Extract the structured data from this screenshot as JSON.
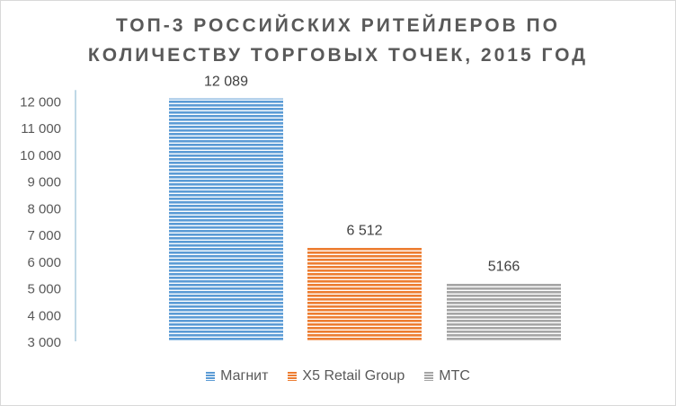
{
  "chart_data": {
    "type": "bar",
    "title_lines": [
      "ТОП-3 РОССИЙСКИХ РИТЕЙЛЕРОВ ПО",
      "КОЛИЧЕСТВУ ТОРГОВЫХ ТОЧЕК, 2015 ГОД"
    ],
    "series": [
      {
        "name": "Магнит",
        "value": 12089,
        "label": "12 089",
        "color": "#5b9bd5"
      },
      {
        "name": "X5 Retail Group",
        "value": 6512,
        "label": "6 512",
        "color": "#ed7d31"
      },
      {
        "name": "МТС",
        "value": 5166,
        "label": "5166",
        "color": "#a5a5a5"
      }
    ],
    "ylim": [
      3000,
      12000
    ],
    "yticks": [
      3000,
      4000,
      5000,
      6000,
      7000,
      8000,
      9000,
      10000,
      11000,
      12000
    ],
    "ytick_labels": [
      "3 000",
      "4 000",
      "5 000",
      "6 000",
      "7 000",
      "8 000",
      "9 000",
      "10 000",
      "11 000",
      "12 000"
    ],
    "grid": false,
    "legend_position": "bottom",
    "bar_pattern": "horizontal-stripes"
  }
}
